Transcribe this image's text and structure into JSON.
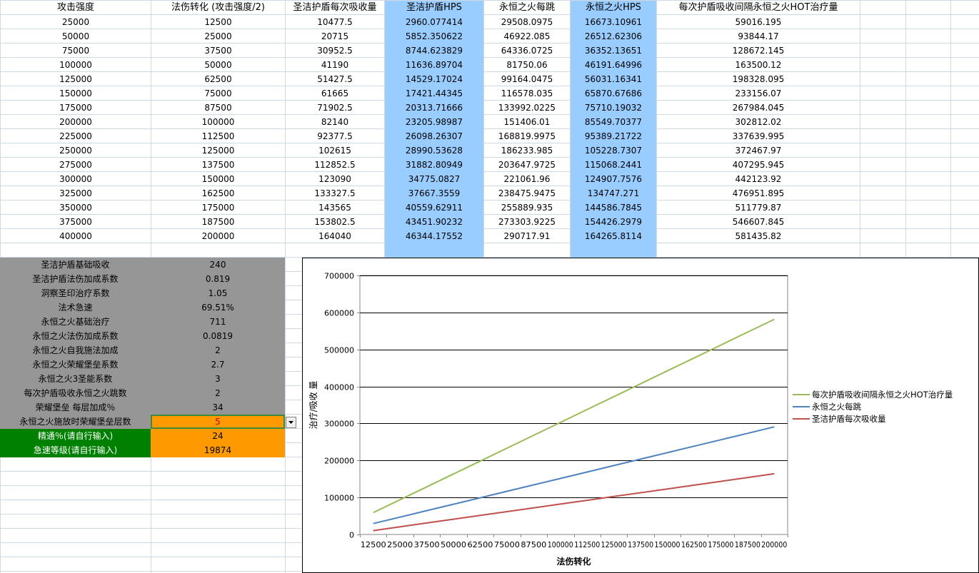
{
  "table": {
    "headers": [
      "攻击强度",
      "法伤转化 (攻击强度/2)",
      "圣洁护盾每次吸收量",
      "圣洁护盾HPS",
      "永恒之火每跳",
      "永恒之火HPS",
      "每次护盾吸收间隔永恒之火HOT治疗量"
    ],
    "rows": [
      [
        "25000",
        "12500",
        "10477.5",
        "2960.077414",
        "29508.0975",
        "16673.10961",
        "59016.195"
      ],
      [
        "50000",
        "25000",
        "20715",
        "5852.350622",
        "46922.085",
        "26512.62306",
        "93844.17"
      ],
      [
        "75000",
        "37500",
        "30952.5",
        "8744.623829",
        "64336.0725",
        "36352.13651",
        "128672.145"
      ],
      [
        "100000",
        "50000",
        "41190",
        "11636.89704",
        "81750.06",
        "46191.64996",
        "163500.12"
      ],
      [
        "125000",
        "62500",
        "51427.5",
        "14529.17024",
        "99164.0475",
        "56031.16341",
        "198328.095"
      ],
      [
        "150000",
        "75000",
        "61665",
        "17421.44345",
        "116578.035",
        "65870.67686",
        "233156.07"
      ],
      [
        "175000",
        "87500",
        "71902.5",
        "20313.71666",
        "133992.0225",
        "75710.19032",
        "267984.045"
      ],
      [
        "200000",
        "100000",
        "82140",
        "23205.98987",
        "151406.01",
        "85549.70377",
        "302812.02"
      ],
      [
        "225000",
        "112500",
        "92377.5",
        "26098.26307",
        "168819.9975",
        "95389.21722",
        "337639.995"
      ],
      [
        "250000",
        "125000",
        "102615",
        "28990.53628",
        "186233.985",
        "105228.7307",
        "372467.97"
      ],
      [
        "275000",
        "137500",
        "112852.5",
        "31882.80949",
        "203647.9725",
        "115068.2441",
        "407295.945"
      ],
      [
        "300000",
        "150000",
        "123090",
        "34775.0827",
        "221061.96",
        "124907.7576",
        "442123.92"
      ],
      [
        "325000",
        "162500",
        "133327.5",
        "37667.3559",
        "238475.9475",
        "134747.271",
        "476951.895"
      ],
      [
        "350000",
        "175000",
        "143565",
        "40559.62911",
        "255889.935",
        "144586.7845",
        "511779.87"
      ],
      [
        "375000",
        "187500",
        "153802.5",
        "43451.90232",
        "273303.9225",
        "154426.2979",
        "546607.845"
      ],
      [
        "400000",
        "200000",
        "164040",
        "46344.17552",
        "290717.91",
        "164265.8114",
        "581435.82"
      ]
    ]
  },
  "params": [
    {
      "label": "圣洁护盾基础吸收",
      "value": "240"
    },
    {
      "label": "圣洁护盾法伤加成系数",
      "value": "0.819"
    },
    {
      "label": "洞察圣印治疗系数",
      "value": "1.05"
    },
    {
      "label": "法术急速",
      "value": "69.51%"
    },
    {
      "label": "永恒之火基础治疗",
      "value": "711"
    },
    {
      "label": "永恒之火法伤加成系数",
      "value": "0.0819"
    },
    {
      "label": "永恒之火自我施法加成",
      "value": "2"
    },
    {
      "label": "永恒之火荣耀堡垒系数",
      "value": "2.7"
    },
    {
      "label": "永恒之火3圣能系数",
      "value": "3"
    },
    {
      "label": "每次护盾吸收永恒之火跳数",
      "value": "2"
    },
    {
      "label": "荣耀堡垒 每层加成％",
      "value": "34"
    }
  ],
  "selected_param": {
    "label": "永恒之火施放时荣耀堡垒层数",
    "value": "5"
  },
  "inputs": [
    {
      "label": "精通％(请自行输入)",
      "value": "24"
    },
    {
      "label": "急速等级(请自行输入)",
      "value": "19874"
    }
  ],
  "colors": {
    "blue": "#99ccff",
    "gray": "#969696",
    "green": "#008000",
    "orange": "#ff9900",
    "line_hot": "#9bbb59",
    "line_tick": "#4f81bd",
    "line_shield": "#c0504d"
  },
  "chart_data": {
    "type": "line",
    "xlabel": "法伤转化",
    "ylabel": "治疗/吸收 量",
    "ylim": [
      0,
      700000
    ],
    "yticks": [
      "0",
      "100000",
      "200000",
      "300000",
      "400000",
      "500000",
      "600000",
      "700000"
    ],
    "categories": [
      "12500",
      "25000",
      "37500",
      "50000",
      "62500",
      "75000",
      "87500",
      "100000",
      "112500",
      "125000",
      "137500",
      "150000",
      "162500",
      "175000",
      "187500",
      "200000"
    ],
    "series": [
      {
        "name": "每次护盾吸收间隔永恒之火HOT治疗量",
        "color": "#9bbb59",
        "values": [
          59016.195,
          93844.17,
          128672.145,
          163500.12,
          198328.095,
          233156.07,
          267984.045,
          302812.02,
          337639.995,
          372467.97,
          407295.945,
          442123.92,
          476951.895,
          511779.87,
          546607.845,
          581435.82
        ]
      },
      {
        "name": "永恒之火每跳",
        "color": "#4f81bd",
        "values": [
          29508.0975,
          46922.085,
          64336.0725,
          81750.06,
          99164.0475,
          116578.035,
          133992.0225,
          151406.01,
          168819.9975,
          186233.985,
          203647.9725,
          221061.96,
          238475.9475,
          255889.935,
          273303.9225,
          290717.91
        ]
      },
      {
        "name": "圣洁护盾每次吸收量",
        "color": "#c0504d",
        "values": [
          10477.5,
          20715,
          30952.5,
          41190,
          51427.5,
          61665,
          71902.5,
          82140,
          92377.5,
          102615,
          112852.5,
          123090,
          133327.5,
          143565,
          153802.5,
          164040
        ]
      }
    ],
    "legend": "right"
  }
}
